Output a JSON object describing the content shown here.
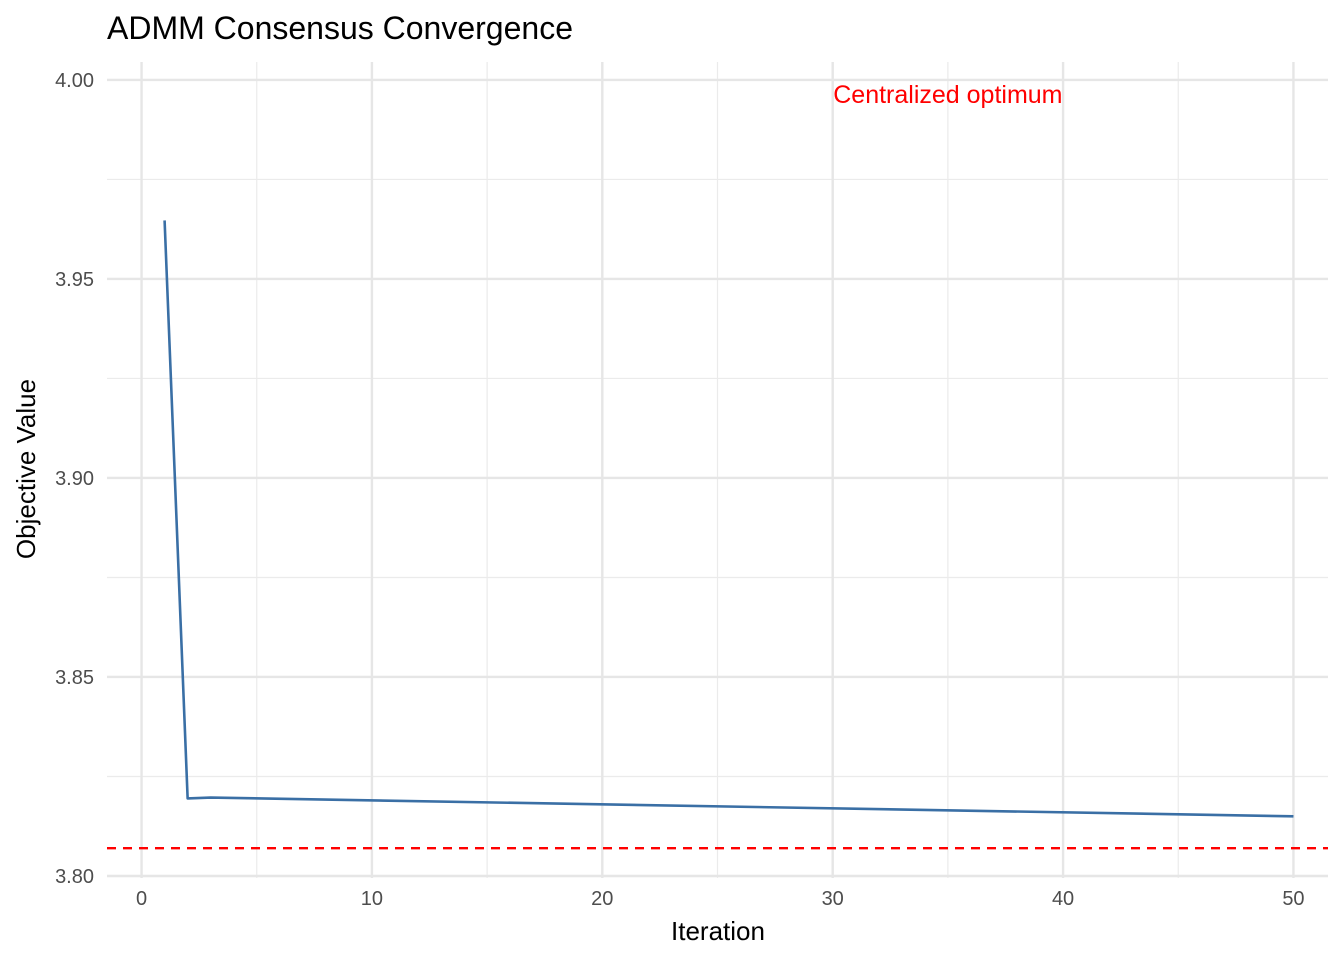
{
  "chart_data": {
    "type": "line",
    "title": "ADMM Consensus Convergence",
    "xlabel": "Iteration",
    "ylabel": "Objective Value",
    "xlim": [
      -1.5,
      51.5
    ],
    "ylim": [
      3.7995,
      4.0045
    ],
    "x_ticks": [
      0,
      10,
      20,
      30,
      40,
      50
    ],
    "x_tick_labels": [
      "0",
      "10",
      "20",
      "30",
      "40",
      "50"
    ],
    "x_minor_ticks": [
      5,
      15,
      25,
      35,
      45
    ],
    "y_ticks": [
      3.8,
      3.85,
      3.9,
      3.95,
      4.0
    ],
    "y_tick_labels": [
      "3.80",
      "3.85",
      "3.90",
      "3.95",
      "4.00"
    ],
    "y_minor_ticks": [
      3.825,
      3.875,
      3.925,
      3.975
    ],
    "grid": true,
    "series": [
      {
        "color": "#3a6fa5",
        "points": [
          [
            1,
            3.9647
          ],
          [
            2,
            3.8195
          ],
          [
            3,
            3.8197
          ],
          [
            50,
            3.815
          ]
        ]
      }
    ],
    "reference_line": {
      "y": 3.807,
      "color": "#ff0000",
      "style": "dashed"
    },
    "annotation": {
      "text": "Centralized optimum",
      "x": 35,
      "y": 3.9965,
      "color": "#ff0000"
    }
  }
}
